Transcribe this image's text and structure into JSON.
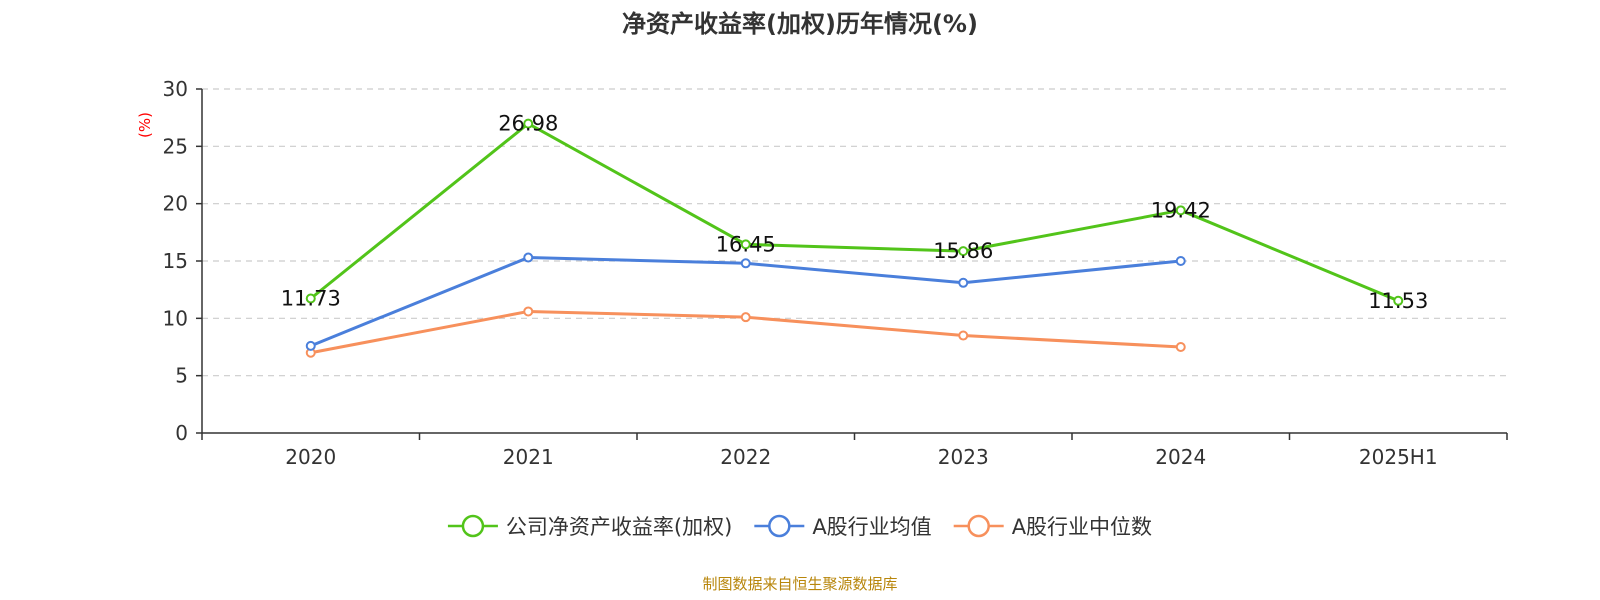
{
  "chart_data": {
    "type": "line",
    "title": "净资产收益率(加权)历年情况(%)",
    "ylabel": "(%)",
    "xlabel": "",
    "categories": [
      "2020",
      "2021",
      "2022",
      "2023",
      "2024",
      "2025H1"
    ],
    "ylim": [
      0,
      30
    ],
    "yticks": [
      0,
      5,
      10,
      15,
      20,
      25,
      30
    ],
    "grid": true,
    "legend_position": "bottom",
    "series": [
      {
        "name": "公司净资产收益率(加权)",
        "color": "#52c41a",
        "values": [
          11.73,
          26.98,
          16.45,
          15.86,
          19.42,
          11.53
        ],
        "labels": [
          "11.73",
          "26.98",
          "16.45",
          "15.86",
          "19.42",
          "11.53"
        ]
      },
      {
        "name": "A股行业均值",
        "color": "#4a7fdb",
        "values": [
          7.6,
          15.3,
          14.8,
          13.1,
          15.0,
          null
        ]
      },
      {
        "name": "A股行业中位数",
        "color": "#f7905c",
        "values": [
          7.0,
          10.6,
          10.1,
          8.5,
          7.5,
          null
        ]
      }
    ],
    "source": "制图数据来自恒生聚源数据库"
  }
}
